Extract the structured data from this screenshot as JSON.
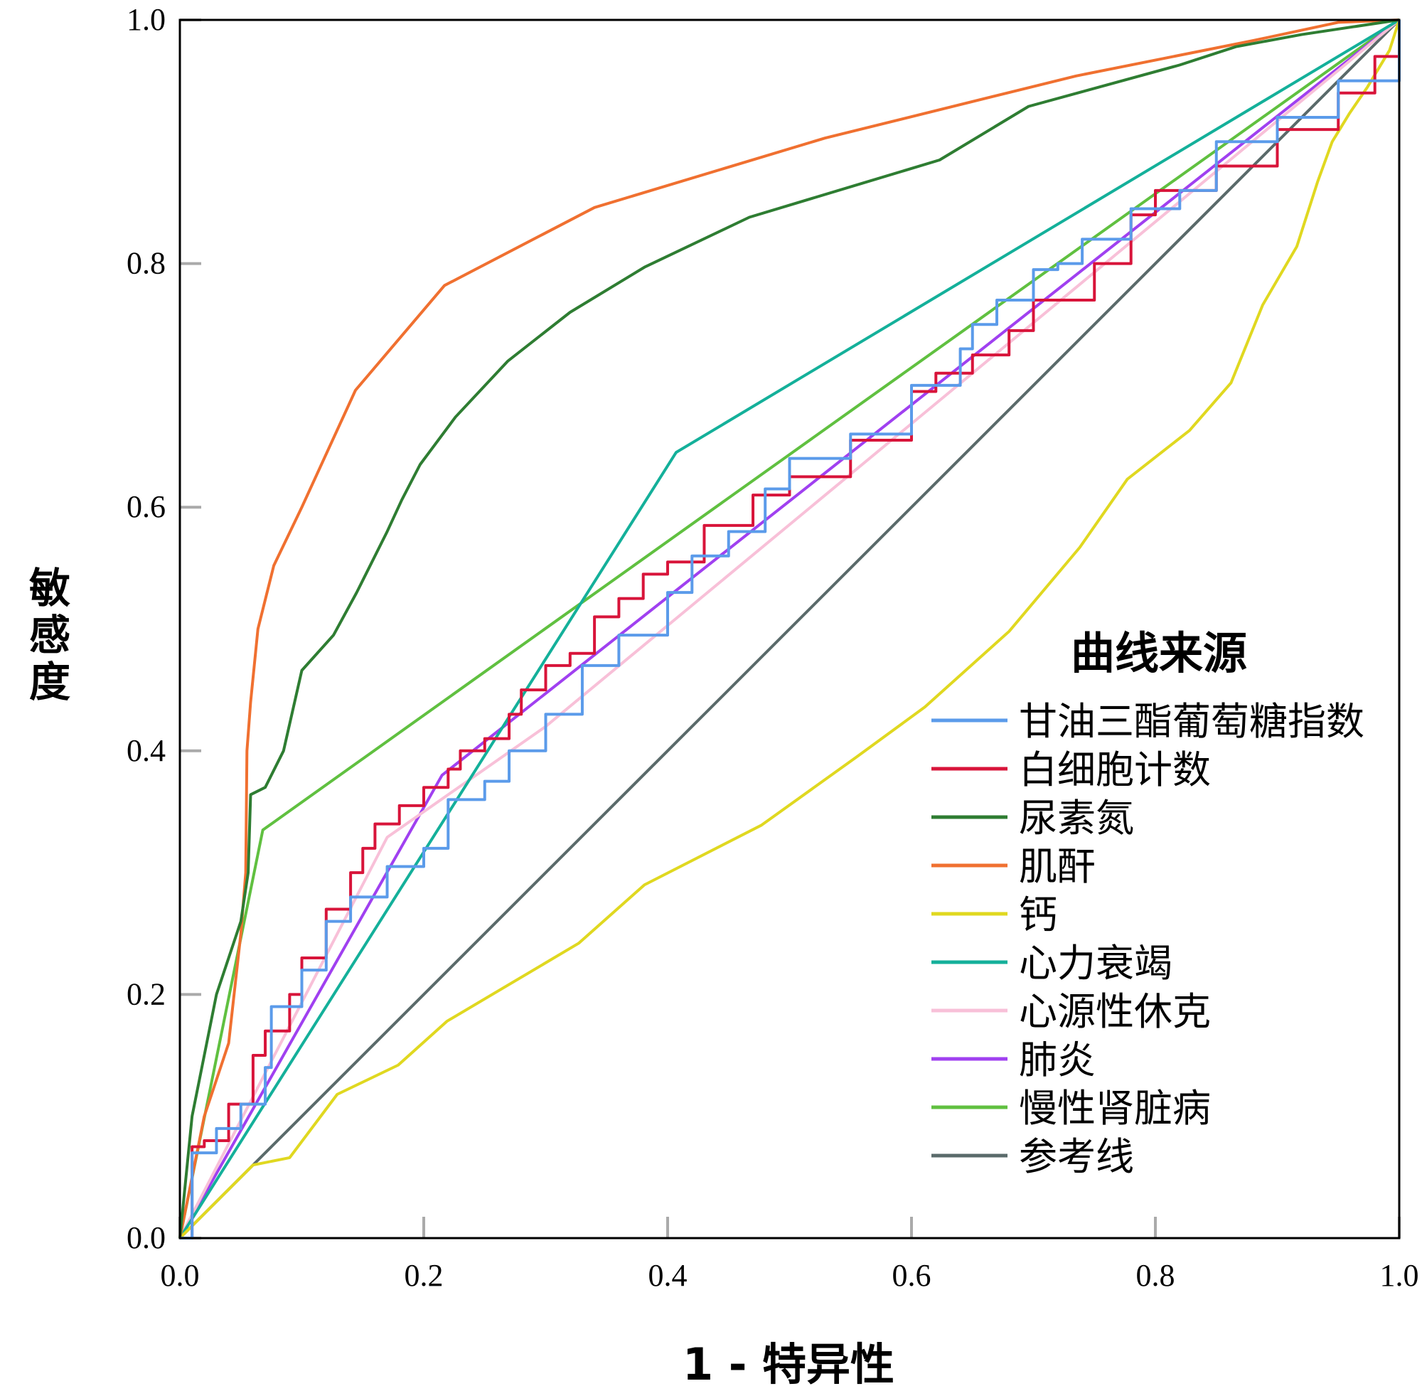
{
  "chart_data": {
    "type": "line",
    "title": "",
    "xlabel": "1 - 特异性",
    "ylabel": "敏感度",
    "xlim": [
      0,
      1
    ],
    "ylim": [
      0,
      1
    ],
    "xticks": [
      "0.0",
      "0.2",
      "0.4",
      "0.6",
      "0.8",
      "1.0"
    ],
    "yticks": [
      "0.0",
      "0.2",
      "0.4",
      "0.6",
      "0.8",
      "1.0"
    ],
    "grid": false,
    "legend": {
      "title": "曲线来源",
      "placement": "bottom-right"
    },
    "series": [
      {
        "name": "甘油三酯葡萄糖指数",
        "color": "#5b9bea",
        "step": true,
        "points": [
          [
            0,
            0
          ],
          [
            0.01,
            0.07
          ],
          [
            0.03,
            0.09
          ],
          [
            0.05,
            0.11
          ],
          [
            0.07,
            0.14
          ],
          [
            0.075,
            0.19
          ],
          [
            0.1,
            0.22
          ],
          [
            0.12,
            0.26
          ],
          [
            0.14,
            0.28
          ],
          [
            0.17,
            0.305
          ],
          [
            0.2,
            0.32
          ],
          [
            0.22,
            0.36
          ],
          [
            0.25,
            0.375
          ],
          [
            0.27,
            0.4
          ],
          [
            0.3,
            0.43
          ],
          [
            0.33,
            0.47
          ],
          [
            0.36,
            0.495
          ],
          [
            0.4,
            0.53
          ],
          [
            0.42,
            0.56
          ],
          [
            0.45,
            0.58
          ],
          [
            0.48,
            0.615
          ],
          [
            0.5,
            0.64
          ],
          [
            0.55,
            0.66
          ],
          [
            0.6,
            0.7
          ],
          [
            0.64,
            0.73
          ],
          [
            0.65,
            0.75
          ],
          [
            0.67,
            0.77
          ],
          [
            0.7,
            0.795
          ],
          [
            0.72,
            0.8
          ],
          [
            0.74,
            0.82
          ],
          [
            0.78,
            0.845
          ],
          [
            0.82,
            0.86
          ],
          [
            0.85,
            0.87
          ],
          [
            0.85,
            0.9
          ],
          [
            0.9,
            0.92
          ],
          [
            0.95,
            0.95
          ],
          [
            1,
            1
          ]
        ]
      },
      {
        "name": "白细胞计数",
        "color": "#d8143a",
        "step": true,
        "points": [
          [
            0,
            0
          ],
          [
            0.01,
            0.075
          ],
          [
            0.02,
            0.08
          ],
          [
            0.04,
            0.11
          ],
          [
            0.06,
            0.15
          ],
          [
            0.07,
            0.17
          ],
          [
            0.09,
            0.2
          ],
          [
            0.1,
            0.23
          ],
          [
            0.12,
            0.27
          ],
          [
            0.14,
            0.3
          ],
          [
            0.15,
            0.32
          ],
          [
            0.16,
            0.34
          ],
          [
            0.18,
            0.355
          ],
          [
            0.2,
            0.37
          ],
          [
            0.22,
            0.385
          ],
          [
            0.23,
            0.4
          ],
          [
            0.25,
            0.41
          ],
          [
            0.27,
            0.43
          ],
          [
            0.28,
            0.45
          ],
          [
            0.3,
            0.47
          ],
          [
            0.32,
            0.48
          ],
          [
            0.34,
            0.51
          ],
          [
            0.36,
            0.525
          ],
          [
            0.38,
            0.545
          ],
          [
            0.4,
            0.555
          ],
          [
            0.43,
            0.585
          ],
          [
            0.47,
            0.61
          ],
          [
            0.5,
            0.625
          ],
          [
            0.55,
            0.655
          ],
          [
            0.6,
            0.695
          ],
          [
            0.62,
            0.71
          ],
          [
            0.65,
            0.725
          ],
          [
            0.68,
            0.745
          ],
          [
            0.7,
            0.77
          ],
          [
            0.75,
            0.8
          ],
          [
            0.78,
            0.84
          ],
          [
            0.8,
            0.86
          ],
          [
            0.85,
            0.88
          ],
          [
            0.9,
            0.91
          ],
          [
            0.95,
            0.94
          ],
          [
            0.98,
            0.97
          ],
          [
            1,
            1
          ]
        ]
      },
      {
        "name": "尿素氮",
        "color": "#2e7d32",
        "points": [
          [
            0,
            0
          ],
          [
            0.01,
            0.1
          ],
          [
            0.03,
            0.2
          ],
          [
            0.05,
            0.26
          ],
          [
            0.056,
            0.3
          ],
          [
            0.058,
            0.364
          ],
          [
            0.07,
            0.37
          ],
          [
            0.085,
            0.4
          ],
          [
            0.1,
            0.466
          ],
          [
            0.126,
            0.495
          ],
          [
            0.145,
            0.53
          ],
          [
            0.17,
            0.58
          ],
          [
            0.182,
            0.606
          ],
          [
            0.197,
            0.635
          ],
          [
            0.226,
            0.674
          ],
          [
            0.269,
            0.72
          ],
          [
            0.32,
            0.76
          ],
          [
            0.381,
            0.797
          ],
          [
            0.467,
            0.838
          ],
          [
            0.623,
            0.885
          ],
          [
            0.696,
            0.929
          ],
          [
            0.82,
            0.963
          ],
          [
            0.866,
            0.978
          ],
          [
            0.92,
            0.988
          ],
          [
            1,
            1
          ]
        ]
      },
      {
        "name": "肌酐",
        "color": "#f07030",
        "points": [
          [
            0,
            0
          ],
          [
            0.02,
            0.1
          ],
          [
            0.04,
            0.16
          ],
          [
            0.05,
            0.25
          ],
          [
            0.054,
            0.3
          ],
          [
            0.055,
            0.4
          ],
          [
            0.058,
            0.44
          ],
          [
            0.064,
            0.5
          ],
          [
            0.077,
            0.552
          ],
          [
            0.1,
            0.6
          ],
          [
            0.144,
            0.696
          ],
          [
            0.217,
            0.782
          ],
          [
            0.34,
            0.846
          ],
          [
            0.529,
            0.903
          ],
          [
            0.735,
            0.954
          ],
          [
            0.88,
            0.983
          ],
          [
            0.95,
            0.998
          ],
          [
            1,
            1
          ]
        ]
      },
      {
        "name": "钙",
        "color": "#e0d820",
        "points": [
          [
            0,
            0
          ],
          [
            0.06,
            0.06
          ],
          [
            0.09,
            0.066
          ],
          [
            0.129,
            0.118
          ],
          [
            0.179,
            0.142
          ],
          [
            0.219,
            0.178
          ],
          [
            0.327,
            0.242
          ],
          [
            0.381,
            0.29
          ],
          [
            0.477,
            0.339
          ],
          [
            0.555,
            0.395
          ],
          [
            0.611,
            0.436
          ],
          [
            0.68,
            0.498
          ],
          [
            0.738,
            0.567
          ],
          [
            0.777,
            0.623
          ],
          [
            0.828,
            0.663
          ],
          [
            0.862,
            0.702
          ],
          [
            0.888,
            0.766
          ],
          [
            0.916,
            0.814
          ],
          [
            0.933,
            0.867
          ],
          [
            0.945,
            0.9
          ],
          [
            0.959,
            0.923
          ],
          [
            0.974,
            0.945
          ],
          [
            0.992,
            0.975
          ],
          [
            1,
            1
          ]
        ]
      },
      {
        "name": "心力衰竭",
        "color": "#14b09a",
        "points": [
          [
            0,
            0
          ],
          [
            0.407,
            0.645
          ],
          [
            1,
            1
          ]
        ]
      },
      {
        "name": "心源性休克",
        "color": "#f8c0d8",
        "points": [
          [
            0,
            0
          ],
          [
            0.17,
            0.329
          ],
          [
            0.3,
            0.42
          ],
          [
            1,
            1
          ]
        ]
      },
      {
        "name": "肺炎",
        "color": "#a040f0",
        "points": [
          [
            0,
            0
          ],
          [
            0.215,
            0.38
          ],
          [
            1,
            1
          ]
        ]
      },
      {
        "name": "慢性肾脏病",
        "color": "#60c040",
        "points": [
          [
            0,
            0
          ],
          [
            0.068,
            0.335
          ],
          [
            1,
            1
          ]
        ]
      },
      {
        "name": "参考线",
        "color": "#5a6a6a",
        "points": [
          [
            0,
            0
          ],
          [
            1,
            1
          ]
        ]
      }
    ]
  }
}
